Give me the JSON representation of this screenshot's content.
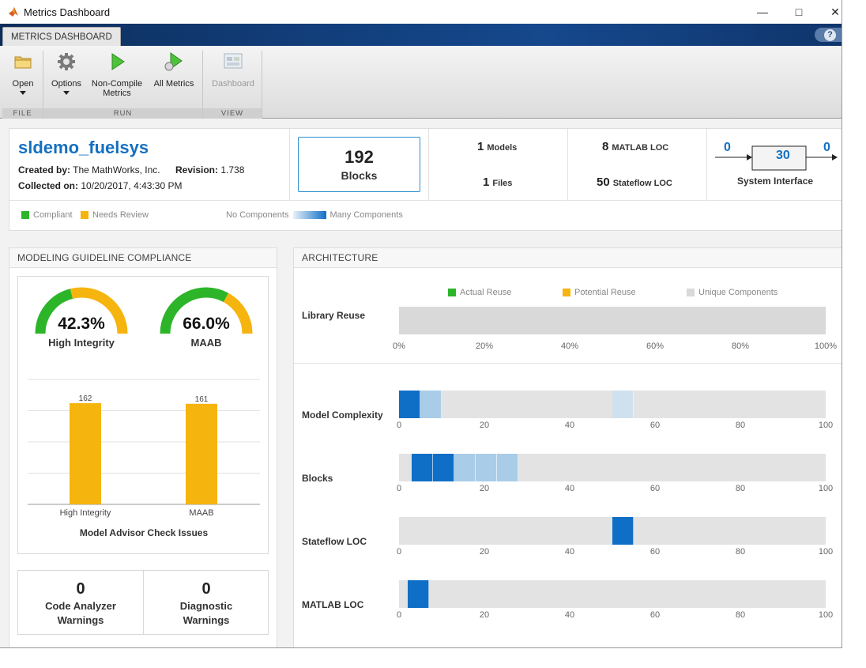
{
  "window": {
    "title": "Metrics Dashboard"
  },
  "ribbon": {
    "tab_label": "METRICS DASHBOARD",
    "help_label": "?",
    "groups": [
      {
        "label": "FILE",
        "buttons": [
          {
            "label": "Open",
            "icon": "folder-icon"
          }
        ]
      },
      {
        "label": "RUN",
        "buttons": [
          {
            "label": "Options",
            "icon": "gear-icon"
          },
          {
            "label": "Non-Compile Metrics",
            "line1": "Non-Compile",
            "line2": "Metrics",
            "icon": "play-icon"
          },
          {
            "label": "All Metrics",
            "icon": "play-all-icon"
          }
        ]
      },
      {
        "label": "VIEW",
        "buttons": [
          {
            "label": "Dashboard",
            "icon": "dashboard-icon",
            "disabled": true
          }
        ]
      }
    ]
  },
  "summary": {
    "model_name": "sldemo_fuelsys",
    "created_by_label": "Created by:",
    "created_by": "The MathWorks, Inc.",
    "revision_label": "Revision:",
    "revision": "1.738",
    "collected_label": "Collected on:",
    "collected_on": "10/20/2017, 4:43:30 PM",
    "blocks": {
      "value": "192",
      "label": "Blocks"
    },
    "models": {
      "value": "1",
      "label": "Models"
    },
    "files": {
      "value": "1",
      "label": "Files"
    },
    "matlab_loc": {
      "value": "8",
      "label": "MATLAB LOC"
    },
    "stateflow_loc": {
      "value": "50",
      "label": "Stateflow LOC"
    },
    "system_interface": {
      "inputs": "0",
      "value": "30",
      "outputs": "0",
      "label": "System Interface"
    },
    "legend": {
      "compliant": "Compliant",
      "needs_review": "Needs Review",
      "no_components": "No Components",
      "many_components": "Many Components"
    }
  },
  "colors": {
    "compliant": "#2db52a",
    "needs_review": "#f6b40e",
    "accent_blue": "#0f6fc6",
    "light_blue": "#9ec8e6",
    "track": "#e3e3e3"
  },
  "compliance": {
    "title": "MODELING GUIDELINE COMPLIANCE",
    "gauges": [
      {
        "name": "High Integrity",
        "percent": "42.3%",
        "value": 42.3
      },
      {
        "name": "MAAB",
        "percent": "66.0%",
        "value": 66.0
      }
    ],
    "chart_title": "Model Advisor Check Issues",
    "warnings": [
      {
        "value": "0",
        "line1": "Code Analyzer",
        "line2": "Warnings"
      },
      {
        "value": "0",
        "line1": "Diagnostic",
        "line2": "Warnings"
      }
    ]
  },
  "chart_data": {
    "type": "bar",
    "title": "Model Advisor Check Issues",
    "categories": [
      "High Integrity",
      "MAAB"
    ],
    "values": [
      162,
      161
    ],
    "value_labels": [
      "162",
      "161"
    ],
    "ylim": [
      0,
      200
    ],
    "grid": true
  },
  "architecture": {
    "title": "ARCHITECTURE",
    "legend": {
      "actual": "Actual Reuse",
      "potential": "Potential Reuse",
      "unique": "Unique Components"
    },
    "library_reuse": {
      "label": "Library Reuse",
      "ticks": [
        "0%",
        "20%",
        "40%",
        "60%",
        "80%",
        "100%"
      ],
      "actual": 0,
      "potential": 0,
      "unique": 100
    },
    "rows": [
      {
        "label": "Model Complexity",
        "segments": [
          {
            "from": 0,
            "to": 5,
            "level": "dark"
          },
          {
            "from": 5,
            "to": 10,
            "level": "light"
          },
          {
            "from": 50,
            "to": 55,
            "level": "faint"
          }
        ]
      },
      {
        "label": "Blocks",
        "segments": [
          {
            "from": 3,
            "to": 8,
            "level": "dark"
          },
          {
            "from": 8,
            "to": 13,
            "level": "dark"
          },
          {
            "from": 13,
            "to": 18,
            "level": "light"
          },
          {
            "from": 18,
            "to": 23,
            "level": "light"
          },
          {
            "from": 23,
            "to": 28,
            "level": "light"
          }
        ]
      },
      {
        "label": "Stateflow LOC",
        "segments": [
          {
            "from": 50,
            "to": 55,
            "level": "dark"
          }
        ]
      },
      {
        "label": "MATLAB LOC",
        "segments": [
          {
            "from": 2,
            "to": 7,
            "level": "dark"
          }
        ]
      }
    ],
    "ticks": [
      "0",
      "20",
      "40",
      "60",
      "80",
      "100"
    ]
  }
}
